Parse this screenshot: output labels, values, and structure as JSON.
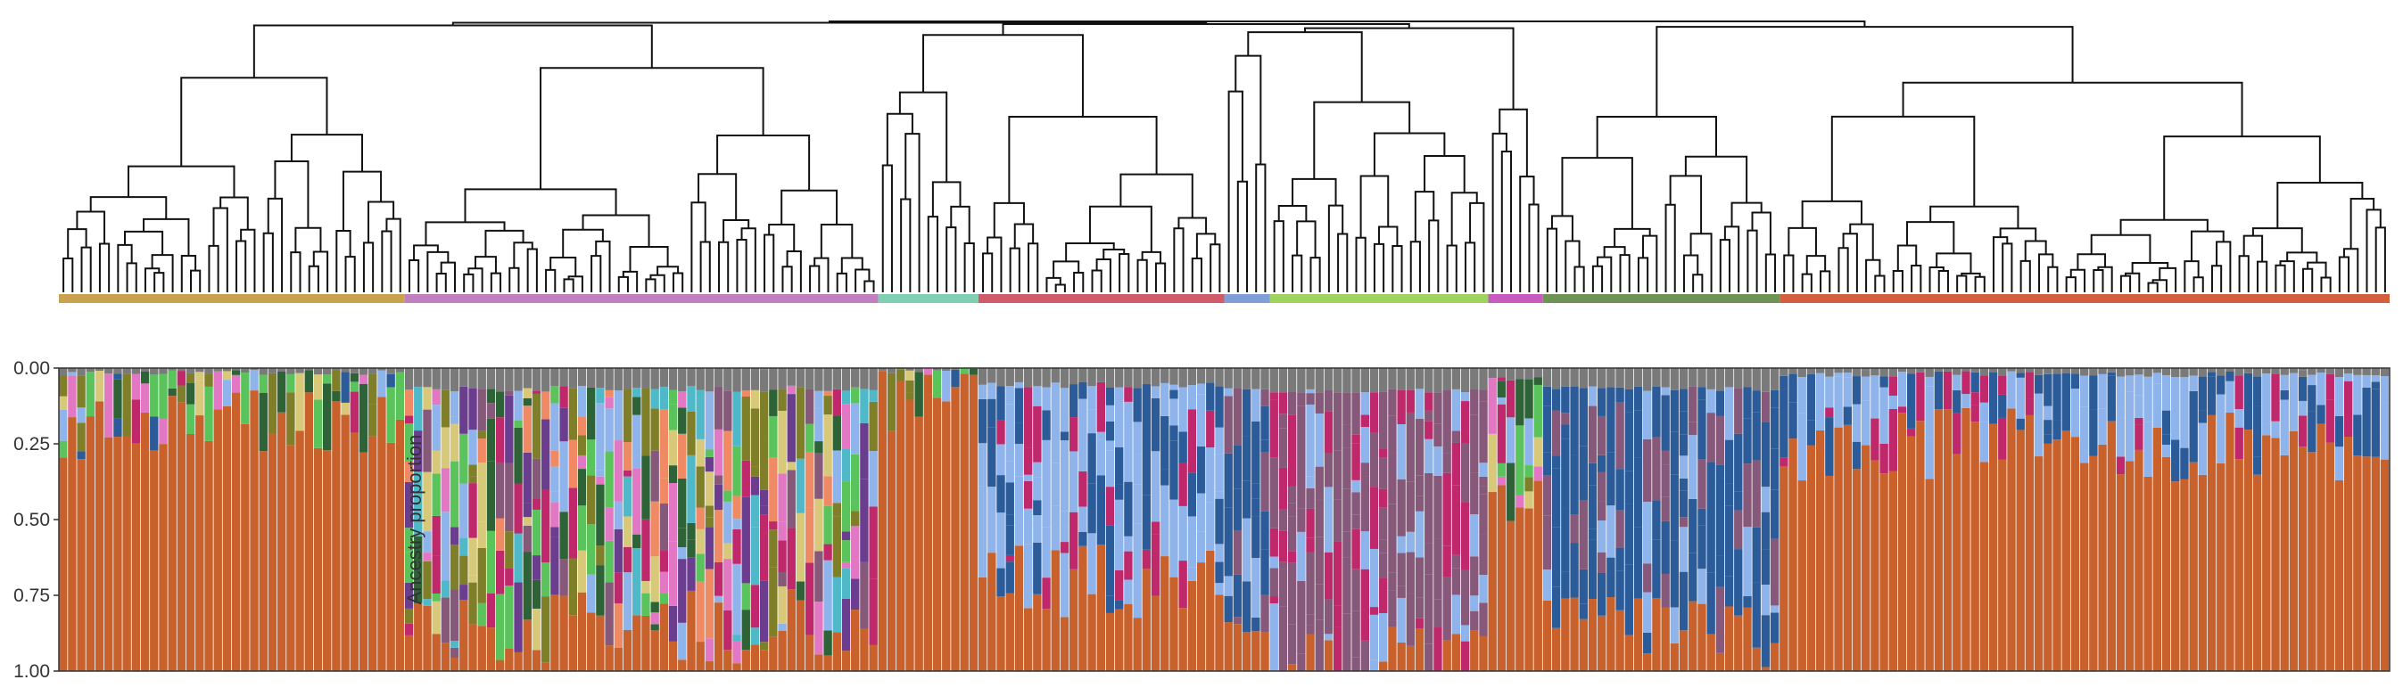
{
  "chart_data": [
    {
      "type": "dendrogram",
      "leaves": 256,
      "clusters": [
        {
          "color": "#c9a24f",
          "leaf_count": 38
        },
        {
          "color": "#c07fbf",
          "leaf_count": 52
        },
        {
          "color": "#7fcfb3",
          "leaf_count": 11
        },
        {
          "color": "#cf5b6b",
          "leaf_count": 27
        },
        {
          "color": "#7f9fd6",
          "leaf_count": 5
        },
        {
          "color": "#9fd35f",
          "leaf_count": 24
        },
        {
          "color": "#c85bbf",
          "leaf_count": 6
        },
        {
          "color": "#6f9355",
          "leaf_count": 26
        },
        {
          "color": "#d2603e",
          "leaf_count": 67
        }
      ],
      "cluster_top_levels": [
        0.88,
        0.92,
        0.82,
        0.72,
        0.97,
        0.78,
        0.75,
        0.72,
        0.86
      ]
    },
    {
      "type": "stacked_bar",
      "ylabel": "Ancestry proportion",
      "ylim": [
        0,
        1
      ],
      "y_reversed": true,
      "ticks": [
        "0.00",
        "0.25",
        "0.50",
        "0.75",
        "1.00"
      ],
      "tick_values": [
        0,
        0.25,
        0.5,
        0.75,
        1
      ],
      "bar_count": 256,
      "ancestry_colors": {
        "orange": "#c8612c",
        "lightblue": "#8fb4ec",
        "navy": "#2b5c99",
        "mauve": "#86597a",
        "olive": "#7f7f2a",
        "khaki": "#d8c97a",
        "magenta": "#c0286c",
        "darkgreen": "#2e6337",
        "pink": "#e277c3",
        "green": "#5bc35b",
        "purple": "#6a3d8f",
        "cyan": "#4fb8c9",
        "salmon": "#f08a64",
        "gray": "#7a7a7a"
      },
      "segments": [
        {
          "bars": [
            0,
            38
          ],
          "orange_mean": 0.82,
          "note": "mostly orange with small mixed tops"
        },
        {
          "bars": [
            38,
            90
          ],
          "orange_mean": 0.15,
          "note": "highly admixed olive, khaki, magenta, mauve, darkgreen"
        },
        {
          "bars": [
            90,
            101
          ],
          "orange_mean": 0.9
        },
        {
          "bars": [
            101,
            128
          ],
          "orange_mean": 0.3,
          "note": "light blue with navy cores"
        },
        {
          "bars": [
            128,
            133
          ],
          "orange_mean": 0.05,
          "note": "navy"
        },
        {
          "bars": [
            133,
            157
          ],
          "orange_mean": 0.02,
          "note": "mauve"
        },
        {
          "bars": [
            157,
            163
          ],
          "orange_mean": 0.55
        },
        {
          "bars": [
            163,
            189
          ],
          "orange_mean": 0.12,
          "note": "navy dominant"
        },
        {
          "bars": [
            189,
            256
          ],
          "orange_mean": 0.75,
          "note": "orange with light blue and mixed tops"
        }
      ]
    }
  ]
}
